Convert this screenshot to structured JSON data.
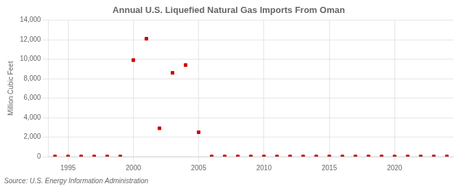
{
  "chart_data": {
    "type": "scatter",
    "title": "Annual U.S. Liquefied Natural Gas Imports From Oman",
    "ylabel": "Million Cubic Feet",
    "annotations": [
      "Source: U.S. Energy Information Administration"
    ],
    "x": [
      1994,
      1995,
      1996,
      1997,
      1998,
      1999,
      2000,
      2001,
      2002,
      2003,
      2004,
      2005,
      2006,
      2007,
      2008,
      2009,
      2010,
      2011,
      2012,
      2013,
      2014,
      2015,
      2016,
      2017,
      2018,
      2019,
      2020,
      2021,
      2022,
      2023,
      2024
    ],
    "values": [
      2,
      2,
      2,
      2,
      2,
      2,
      9900,
      12100,
      2900,
      8600,
      9400,
      2500,
      2,
      2,
      2,
      2,
      2,
      2,
      2,
      2,
      2,
      2,
      2,
      2,
      2,
      2,
      2,
      2,
      2,
      2,
      2
    ],
    "color": "#cc0000",
    "marker": "square",
    "xlim": [
      1993.5,
      2024.5
    ],
    "ylim": [
      0,
      14000
    ],
    "xticks": [
      1995,
      2000,
      2005,
      2010,
      2015,
      2020
    ],
    "yticks": [
      0,
      {
        "value": 2000,
        "label": "2,000"
      },
      {
        "value": 4000,
        "label": "4,000"
      },
      {
        "value": 6000,
        "label": "6,000"
      },
      {
        "value": 8000,
        "label": "8,000"
      },
      {
        "value": 10000,
        "label": "10,000"
      },
      {
        "value": 12000,
        "label": "12,000"
      },
      {
        "value": 14000,
        "label": "14,000"
      }
    ],
    "grid": true
  }
}
